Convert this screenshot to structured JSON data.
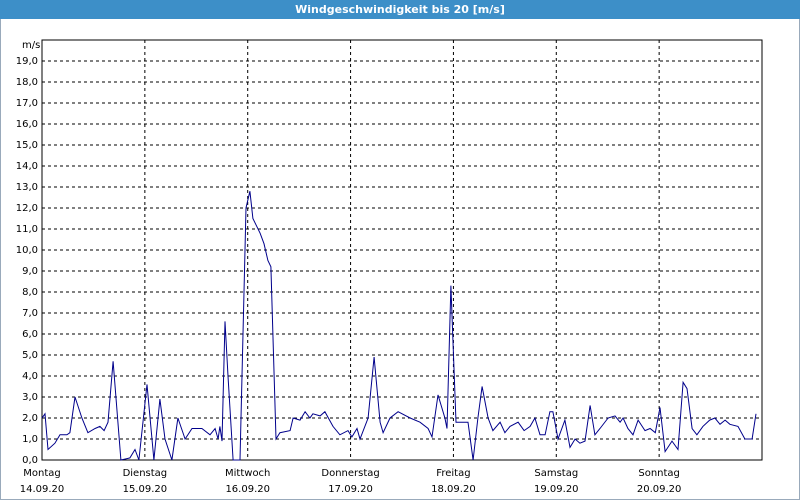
{
  "chart_data": {
    "type": "line",
    "title": "Windgeschwindigkeit bis 20 [m/s]",
    "y_unit": "m/s",
    "xlim": [
      0,
      168
    ],
    "ylim": [
      0,
      20
    ],
    "xticks": [
      {
        "value": 0,
        "label": "Montag"
      },
      {
        "value": 24,
        "label": "Dienstag"
      },
      {
        "value": 48,
        "label": "Mittwoch"
      },
      {
        "value": 72,
        "label": "Donnerstag"
      },
      {
        "value": 96,
        "label": "Freitag"
      },
      {
        "value": 120,
        "label": "Samstag"
      },
      {
        "value": 144,
        "label": "Sonntag"
      }
    ],
    "xtick_dates": [
      "14.09.20",
      "15.09.20",
      "16.09.20",
      "17.09.20",
      "18.09.20",
      "19.09.20",
      "20.09.20"
    ],
    "yticks": [
      {
        "value": 0,
        "label": "0,0"
      },
      {
        "value": 1,
        "label": "1,0"
      },
      {
        "value": 2,
        "label": "2,0"
      },
      {
        "value": 3,
        "label": "3,0"
      },
      {
        "value": 4,
        "label": "4,0"
      },
      {
        "value": 5,
        "label": "5,0"
      },
      {
        "value": 6,
        "label": "6,0"
      },
      {
        "value": 7,
        "label": "7,0"
      },
      {
        "value": 8,
        "label": "8,0"
      },
      {
        "value": 9,
        "label": "9,0"
      },
      {
        "value": 10,
        "label": "10,0"
      },
      {
        "value": 11,
        "label": "11,0"
      },
      {
        "value": 12,
        "label": "12,0"
      },
      {
        "value": 13,
        "label": "13,0"
      },
      {
        "value": 14,
        "label": "14,0"
      },
      {
        "value": 15,
        "label": "15,0"
      },
      {
        "value": 16,
        "label": "16,0"
      },
      {
        "value": 17,
        "label": "17,0"
      },
      {
        "value": 18,
        "label": "18,0"
      },
      {
        "value": 19,
        "label": "19,0"
      }
    ],
    "grid": true,
    "series": [
      {
        "color": "#00008b",
        "x": [
          0,
          0.7,
          1.4,
          3.0,
          4.2,
          5.8,
          6.5,
          7.7,
          9.3,
          10.7,
          12.4,
          13.5,
          14.5,
          15.4,
          16.6,
          18.4,
          20.5,
          21.7,
          22.6,
          24.5,
          26.1,
          27.5,
          28.7,
          30.3,
          31.7,
          33.4,
          35.0,
          37.3,
          39.2,
          40.4,
          41.1,
          41.5,
          42.0,
          42.7,
          43.4,
          44.6,
          46.2,
          47.6,
          48.5,
          49.2,
          50.9,
          51.8,
          52.7,
          53.4,
          54.6,
          55.5,
          57.9,
          58.6,
          60.2,
          61.4,
          62.5,
          63.2,
          64.9,
          66.0,
          67.9,
          69.5,
          71.4,
          72.3,
          73.5,
          74.2,
          76.1,
          77.5,
          78.9,
          79.6,
          81.2,
          83.1,
          85.9,
          88.2,
          90.1,
          91.0,
          92.4,
          94.0,
          94.5,
          95.4,
          96.6,
          99.4,
          100.6,
          101.7,
          102.7,
          104.1,
          105.2,
          106.9,
          108.0,
          109.2,
          111.1,
          112.5,
          113.9,
          115.0,
          116.2,
          117.4,
          118.5,
          119.2,
          120.4,
          122.0,
          123.2,
          124.4,
          125.5,
          126.7,
          127.9,
          129.0,
          130.2,
          132.1,
          133.7,
          134.9,
          135.6,
          136.7,
          137.9,
          139.1,
          140.7,
          141.9,
          143.1,
          144.2,
          145.4,
          147.0,
          148.4,
          149.6,
          150.5,
          151.7,
          152.8,
          154.2,
          155.8,
          157.0,
          158.2,
          159.4,
          160.5,
          162.4,
          164.0,
          165.7,
          166.6
        ],
        "values": [
          2.0,
          2.2,
          0.5,
          0.8,
          1.2,
          1.2,
          1.3,
          3.0,
          2.0,
          1.3,
          1.5,
          1.6,
          1.4,
          1.8,
          4.7,
          0.0,
          0.1,
          0.5,
          0.0,
          3.6,
          0.0,
          2.9,
          1.0,
          0.0,
          2.0,
          1.0,
          1.5,
          1.5,
          1.2,
          1.5,
          1.0,
          1.6,
          0.9,
          6.6,
          4.0,
          0.0,
          0.0,
          12.0,
          12.8,
          11.5,
          10.8,
          10.3,
          9.5,
          9.2,
          1.0,
          1.3,
          1.4,
          2.0,
          1.9,
          2.3,
          2.0,
          2.2,
          2.1,
          2.3,
          1.6,
          1.2,
          1.4,
          1.1,
          1.5,
          1.0,
          2.0,
          4.9,
          1.8,
          1.3,
          2.0,
          2.3,
          2.0,
          1.8,
          1.5,
          1.1,
          3.1,
          2.0,
          1.5,
          8.3,
          1.8,
          1.8,
          0.0,
          2.0,
          3.5,
          2.0,
          1.4,
          1.8,
          1.3,
          1.6,
          1.8,
          1.4,
          1.6,
          2.0,
          1.2,
          1.2,
          2.3,
          2.3,
          1.0,
          1.9,
          0.6,
          1.0,
          0.8,
          0.9,
          2.6,
          1.2,
          1.5,
          2.0,
          2.1,
          1.8,
          2.0,
          1.5,
          1.2,
          1.9,
          1.4,
          1.5,
          1.3,
          2.5,
          0.4,
          0.9,
          0.5,
          3.7,
          3.4,
          1.5,
          1.2,
          1.6,
          1.9,
          2.0,
          1.7,
          1.9,
          1.7,
          1.6,
          1.0,
          1.0,
          2.2
        ]
      }
    ]
  }
}
